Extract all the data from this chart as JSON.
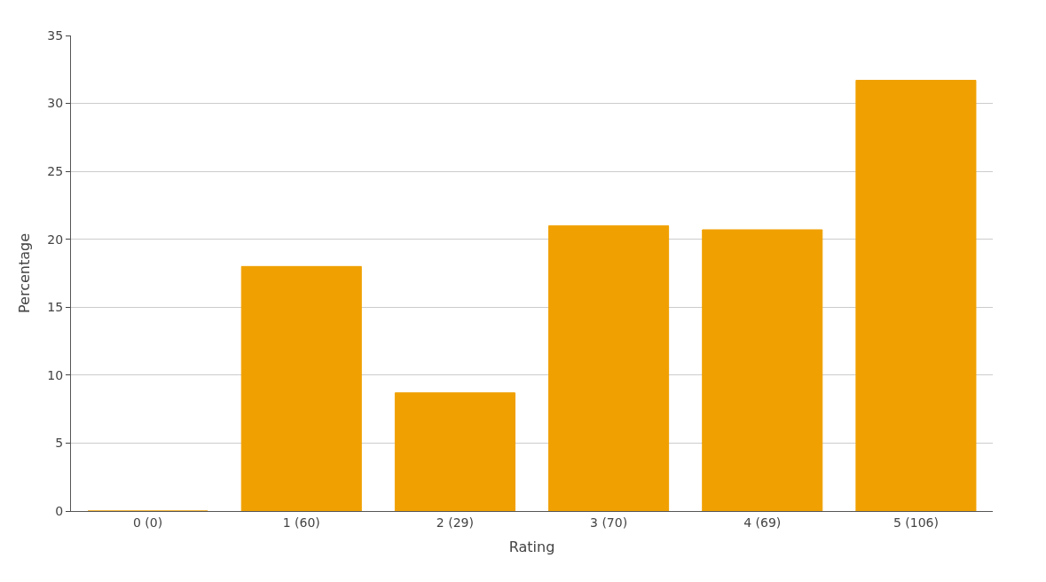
{
  "chart_data": {
    "type": "bar",
    "xlabel": "Rating",
    "ylabel": "Percentage",
    "categories": [
      "0 (0)",
      "1 (60)",
      "2 (29)",
      "3 (70)",
      "4 (69)",
      "5 (106)"
    ],
    "values": [
      0,
      18,
      8.7,
      21,
      20.7,
      31.7
    ],
    "color": "#f0a000",
    "ylim": [
      0,
      35
    ],
    "yticks": [
      0,
      5,
      10,
      15,
      20,
      25,
      30,
      35
    ],
    "grid": "y",
    "legend": false
  }
}
